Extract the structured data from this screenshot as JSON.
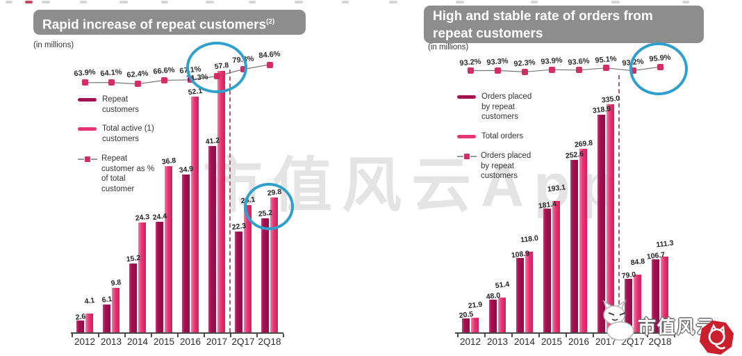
{
  "colors": {
    "bar_dark": "#a31150",
    "bar_light": "#e63572",
    "line_marker": "#d22e66",
    "highlight_circle": "#2ea0cb",
    "banner_bg": "#8d8d8d",
    "logo_red": "#cc1f2d"
  },
  "watermark_text": "市值风云App",
  "logo": {
    "text": "市值风云"
  },
  "chart_data": [
    {
      "type": "bar",
      "title": "Rapid increase of repeat customers",
      "title_note": "(2)",
      "units_label": "(in millions)",
      "grid": false,
      "legend_position": "upper-left",
      "categories": [
        "2012",
        "2013",
        "2014",
        "2015",
        "2016",
        "2017",
        "2Q17",
        "2Q18"
      ],
      "series": [
        {
          "name": "Repeat customers",
          "values": [
            2.6,
            6.1,
            15.2,
            24.4,
            34.9,
            41.2,
            22.3,
            25.2
          ]
        },
        {
          "name": "Total active (1) customers",
          "values": [
            4.1,
            9.8,
            24.3,
            36.8,
            52.1,
            57.8,
            28.1,
            29.8
          ]
        }
      ],
      "line_series": {
        "name": "Repeat customer as % of total customer",
        "unit": "%",
        "values": [
          63.9,
          64.1,
          62.4,
          66.6,
          67.1,
          71.3,
          79.3,
          84.6
        ]
      },
      "legend": [
        {
          "label": "Repeat customers",
          "swatch": "bar-dark"
        },
        {
          "label": "Total active (1) customers",
          "swatch": "bar-light"
        },
        {
          "label": "Repeat customer as % of total customer",
          "swatch": "line-marker"
        }
      ],
      "annotations": [
        "blue circle on 2017 value 57.8 / 71.3%",
        "blue circle on 2Q18 value 29.8"
      ]
    },
    {
      "type": "bar",
      "title": "High and stable rate of orders from repeat customers",
      "units_label": "(in millions)",
      "grid": false,
      "legend_position": "upper-left",
      "categories": [
        "2012",
        "2013",
        "2014",
        "2015",
        "2016",
        "2017",
        "2Q17",
        "2Q18"
      ],
      "series": [
        {
          "name": "Orders placed by repeat customers",
          "values": [
            20.5,
            48.0,
            108.9,
            181.4,
            252.6,
            318.9,
            79.0,
            106.7
          ]
        },
        {
          "name": "Total orders",
          "values": [
            21.9,
            51.4,
            118.0,
            193.1,
            269.8,
            335.0,
            84.8,
            111.3
          ]
        }
      ],
      "line_series": {
        "name": "Orders placed by repeat customers",
        "unit": "%",
        "values": [
          93.2,
          93.3,
          92.3,
          93.9,
          93.6,
          95.1,
          93.2,
          95.9
        ]
      },
      "legend": [
        {
          "label": "Orders placed by repeat customers",
          "swatch": "bar-dark"
        },
        {
          "label": "Total orders",
          "swatch": "bar-light"
        },
        {
          "label": "Orders placed by repeat customers",
          "swatch": "line-marker"
        }
      ],
      "annotations": [
        "blue circle on 2Q18 percentage 95.9%"
      ]
    }
  ]
}
